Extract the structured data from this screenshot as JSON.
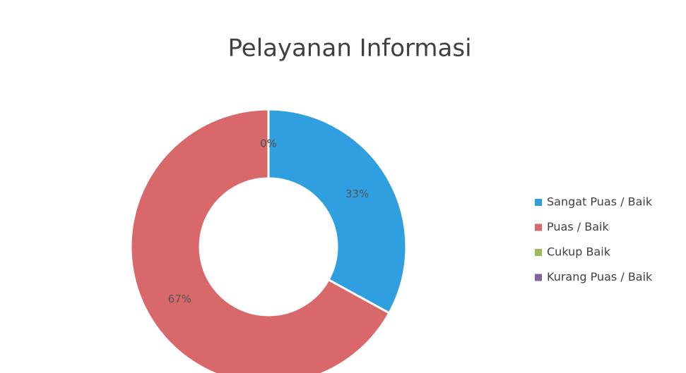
{
  "chart_data": {
    "type": "donut",
    "title": "Pelayanan Informasi",
    "categories": [
      "Sangat Puas / Baik",
      "Puas / Baik",
      "Cukup Baik",
      "Kurang Puas / Baik"
    ],
    "values": [
      33,
      67,
      0,
      0
    ],
    "value_labels": [
      "33%",
      "67%",
      "0%",
      "0%"
    ],
    "colors": [
      "#2f9fe0",
      "#d9686b",
      "#9bbb59",
      "#8064a2"
    ],
    "legend": "right"
  }
}
